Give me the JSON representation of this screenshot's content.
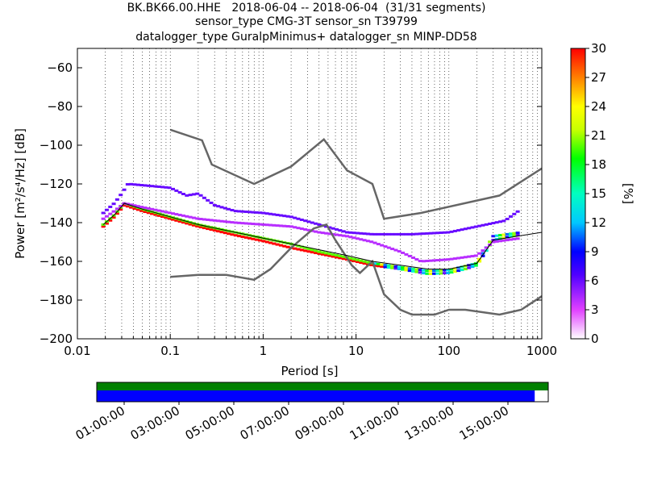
{
  "title_lines": [
    "BK.BK66.00.HHE   2018-06-04 -- 2018-06-04  (31/31 segments)",
    "sensor_type CMG-3T sensor_sn T39799",
    "datalogger_type GuralpMinimus+ datalogger_sn MINP-DD58"
  ],
  "chart_data": {
    "type": "heatmap",
    "xlabel": "Period [s]",
    "ylabel": "Power [m²/s⁴/Hz] [dB]",
    "xscale": "log",
    "xlim": [
      0.01,
      1000
    ],
    "ylim": [
      -200,
      -50
    ],
    "x_ticks": [
      0.01,
      0.1,
      1,
      10,
      100,
      1000
    ],
    "x_tick_labels": [
      "0.01",
      "0.1",
      "1",
      "10",
      "100",
      "1000"
    ],
    "y_ticks": [
      -200,
      -180,
      -160,
      -140,
      -120,
      -100,
      -80,
      -60
    ],
    "y_tick_labels": [
      "−200",
      "−180",
      "−160",
      "−140",
      "−120",
      "−100",
      "−80",
      "−60"
    ],
    "grid": "vertical dotted",
    "colorbar": {
      "label": "[%]",
      "range": [
        0,
        30
      ],
      "ticks": [
        0,
        3,
        6,
        9,
        12,
        15,
        18,
        21,
        24,
        27,
        30
      ],
      "tick_labels": [
        "0",
        "3",
        "6",
        "9",
        "12",
        "15",
        "18",
        "21",
        "24",
        "27",
        "30"
      ]
    },
    "noise_models": [
      {
        "points": [
          [
            0.1,
            -92
          ],
          [
            0.22,
            -97.5
          ],
          [
            0.28,
            -110
          ],
          [
            0.8,
            -120
          ],
          [
            2,
            -111
          ],
          [
            4.5,
            -97
          ],
          [
            8,
            -113
          ],
          [
            15,
            -120
          ],
          [
            20,
            -138
          ],
          [
            50,
            -135
          ],
          [
            350,
            -126
          ],
          [
            1000,
            -112
          ]
        ]
      },
      {
        "points": [
          [
            0.1,
            -168
          ],
          [
            0.2,
            -167
          ],
          [
            0.4,
            -167
          ],
          [
            0.8,
            -169.5
          ],
          [
            1.2,
            -164
          ],
          [
            2,
            -153
          ],
          [
            3.5,
            -143
          ],
          [
            4.8,
            -141
          ],
          [
            6,
            -149
          ],
          [
            9,
            -162
          ],
          [
            11,
            -166
          ],
          [
            15,
            -160
          ],
          [
            20,
            -177
          ],
          [
            30,
            -185
          ],
          [
            40,
            -187.5
          ],
          [
            70,
            -187.5
          ],
          [
            100,
            -185
          ],
          [
            150,
            -185
          ],
          [
            350,
            -187.5
          ],
          [
            600,
            -185
          ],
          [
            1000,
            -178
          ]
        ]
      }
    ],
    "mode_line": [
      [
        0.019,
        -141
      ],
      [
        0.025,
        -136
      ],
      [
        0.032,
        -130
      ],
      [
        0.05,
        -133
      ],
      [
        0.1,
        -137
      ],
      [
        0.2,
        -141
      ],
      [
        0.5,
        -145
      ],
      [
        1,
        -148
      ],
      [
        2,
        -151
      ],
      [
        4,
        -154
      ],
      [
        8,
        -157
      ],
      [
        15,
        -160
      ],
      [
        30,
        -162
      ],
      [
        60,
        -164
      ],
      [
        100,
        -164
      ],
      [
        200,
        -161
      ],
      [
        300,
        -149
      ],
      [
        1000,
        -145
      ]
    ],
    "psd_bands": [
      {
        "name": "lower",
        "color_pct": 30,
        "points": [
          [
            0.019,
            -142
          ],
          [
            0.025,
            -137
          ],
          [
            0.032,
            -131
          ],
          [
            0.05,
            -134
          ],
          [
            0.1,
            -138
          ],
          [
            0.2,
            -142
          ],
          [
            0.5,
            -146.5
          ],
          [
            1,
            -149.5
          ],
          [
            2,
            -153
          ],
          [
            4,
            -156
          ],
          [
            8,
            -159
          ],
          [
            15,
            -162
          ],
          [
            30,
            -164
          ],
          [
            60,
            -166.5
          ],
          [
            100,
            -166
          ],
          [
            150,
            -164
          ],
          [
            200,
            -162
          ],
          [
            300,
            -149
          ],
          [
            600,
            -146
          ]
        ]
      },
      {
        "name": "middle",
        "color_pct": 20,
        "points": [
          [
            0.019,
            -141
          ],
          [
            0.025,
            -136
          ],
          [
            0.032,
            -130
          ],
          [
            0.05,
            -133
          ],
          [
            0.1,
            -137
          ],
          [
            0.2,
            -141
          ],
          [
            0.5,
            -145
          ],
          [
            1,
            -148
          ],
          [
            2,
            -151
          ],
          [
            4,
            -155
          ],
          [
            8,
            -158
          ],
          [
            15,
            -161
          ],
          [
            30,
            -163
          ],
          [
            60,
            -165
          ],
          [
            100,
            -164.5
          ],
          [
            200,
            -161
          ],
          [
            300,
            -147
          ],
          [
            600,
            -145
          ]
        ]
      },
      {
        "name": "upper",
        "color_pct": 4,
        "points": [
          [
            0.019,
            -138
          ],
          [
            0.025,
            -134
          ],
          [
            0.032,
            -130
          ],
          [
            0.05,
            -132
          ],
          [
            0.1,
            -135
          ],
          [
            0.2,
            -138
          ],
          [
            0.5,
            -140
          ],
          [
            1,
            -141
          ],
          [
            2,
            -142
          ],
          [
            4,
            -145
          ],
          [
            8,
            -147
          ],
          [
            15,
            -150
          ],
          [
            30,
            -155
          ],
          [
            50,
            -160
          ],
          [
            100,
            -159
          ],
          [
            200,
            -157
          ],
          [
            300,
            -150
          ],
          [
            600,
            -148
          ]
        ]
      },
      {
        "name": "outlier-high",
        "color_pct": 6,
        "points": [
          [
            0.019,
            -135
          ],
          [
            0.025,
            -130
          ],
          [
            0.03,
            -125
          ],
          [
            0.035,
            -120
          ],
          [
            0.06,
            -121
          ],
          [
            0.1,
            -122
          ],
          [
            0.15,
            -126
          ],
          [
            0.2,
            -125
          ],
          [
            0.3,
            -131
          ],
          [
            0.5,
            -134
          ],
          [
            1,
            -135
          ],
          [
            2,
            -137
          ],
          [
            4,
            -141
          ],
          [
            8,
            -145
          ],
          [
            15,
            -146
          ],
          [
            40,
            -146
          ],
          [
            100,
            -145
          ],
          [
            200,
            -142
          ],
          [
            400,
            -139
          ],
          [
            600,
            -133
          ]
        ]
      }
    ]
  },
  "timeline": {
    "tick_labels": [
      "01:00:00",
      "03:00:00",
      "05:00:00",
      "07:00:00",
      "09:00:00",
      "11:00:00",
      "13:00:00",
      "15:00:00"
    ],
    "coverage_fraction": 0.97,
    "colors": {
      "data": "#0000ff",
      "gaps": "#008000"
    }
  }
}
